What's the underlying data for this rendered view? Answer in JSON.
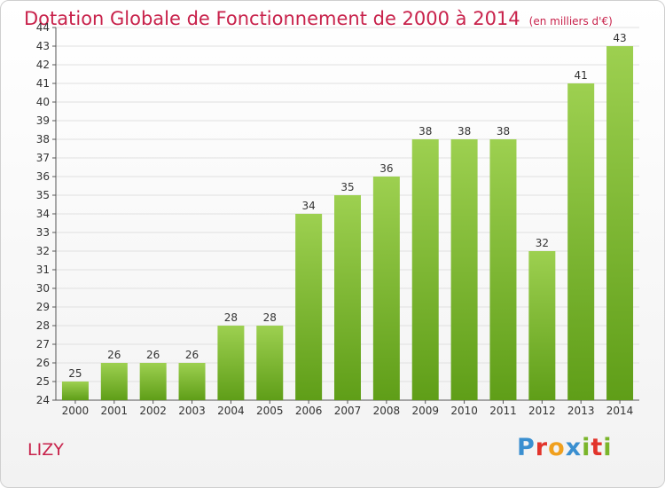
{
  "title": "Dotation Globale de Fonctionnement de 2000 à 2014",
  "subtitle": "(en milliers d'€)",
  "place": "LIZY",
  "logo": {
    "letters": [
      "P",
      "r",
      "o",
      "x",
      "i",
      "t",
      "i"
    ],
    "colors": [
      "#3a8fd0",
      "#e2342b",
      "#f0a01e",
      "#3a8fd0",
      "#7ab52a",
      "#e2342b",
      "#7ab52a"
    ]
  },
  "colors": {
    "bar_top": "#9dd050",
    "bar_bottom": "#5f9e18",
    "title": "#c8224b",
    "grid": "#e0e0e0",
    "text": "#333333"
  },
  "chart_data": {
    "type": "bar",
    "title": "Dotation Globale de Fonctionnement de 2000 à 2014",
    "subtitle": "(en milliers d'€)",
    "categories": [
      "2000",
      "2001",
      "2002",
      "2003",
      "2004",
      "2005",
      "2006",
      "2007",
      "2008",
      "2009",
      "2010",
      "2011",
      "2012",
      "2013",
      "2014"
    ],
    "values": [
      25,
      26,
      26,
      26,
      28,
      28,
      34,
      35,
      36,
      38,
      38,
      38,
      32,
      41,
      43
    ],
    "data_labels": [
      "25",
      "26",
      "26",
      "26",
      "28",
      "28",
      "34",
      "35",
      "36",
      "38",
      "38",
      "38",
      "32",
      "41",
      "43"
    ],
    "y_ticks": [
      "24",
      "25",
      "26",
      "27",
      "28",
      "29",
      "30",
      "31",
      "32",
      "33",
      "34",
      "35",
      "36",
      "37",
      "38",
      "39",
      "40",
      "41",
      "42",
      "43",
      "44"
    ],
    "ylim": [
      24,
      44
    ],
    "xlabel": "",
    "ylabel": "",
    "grid": true,
    "legend": "none"
  }
}
